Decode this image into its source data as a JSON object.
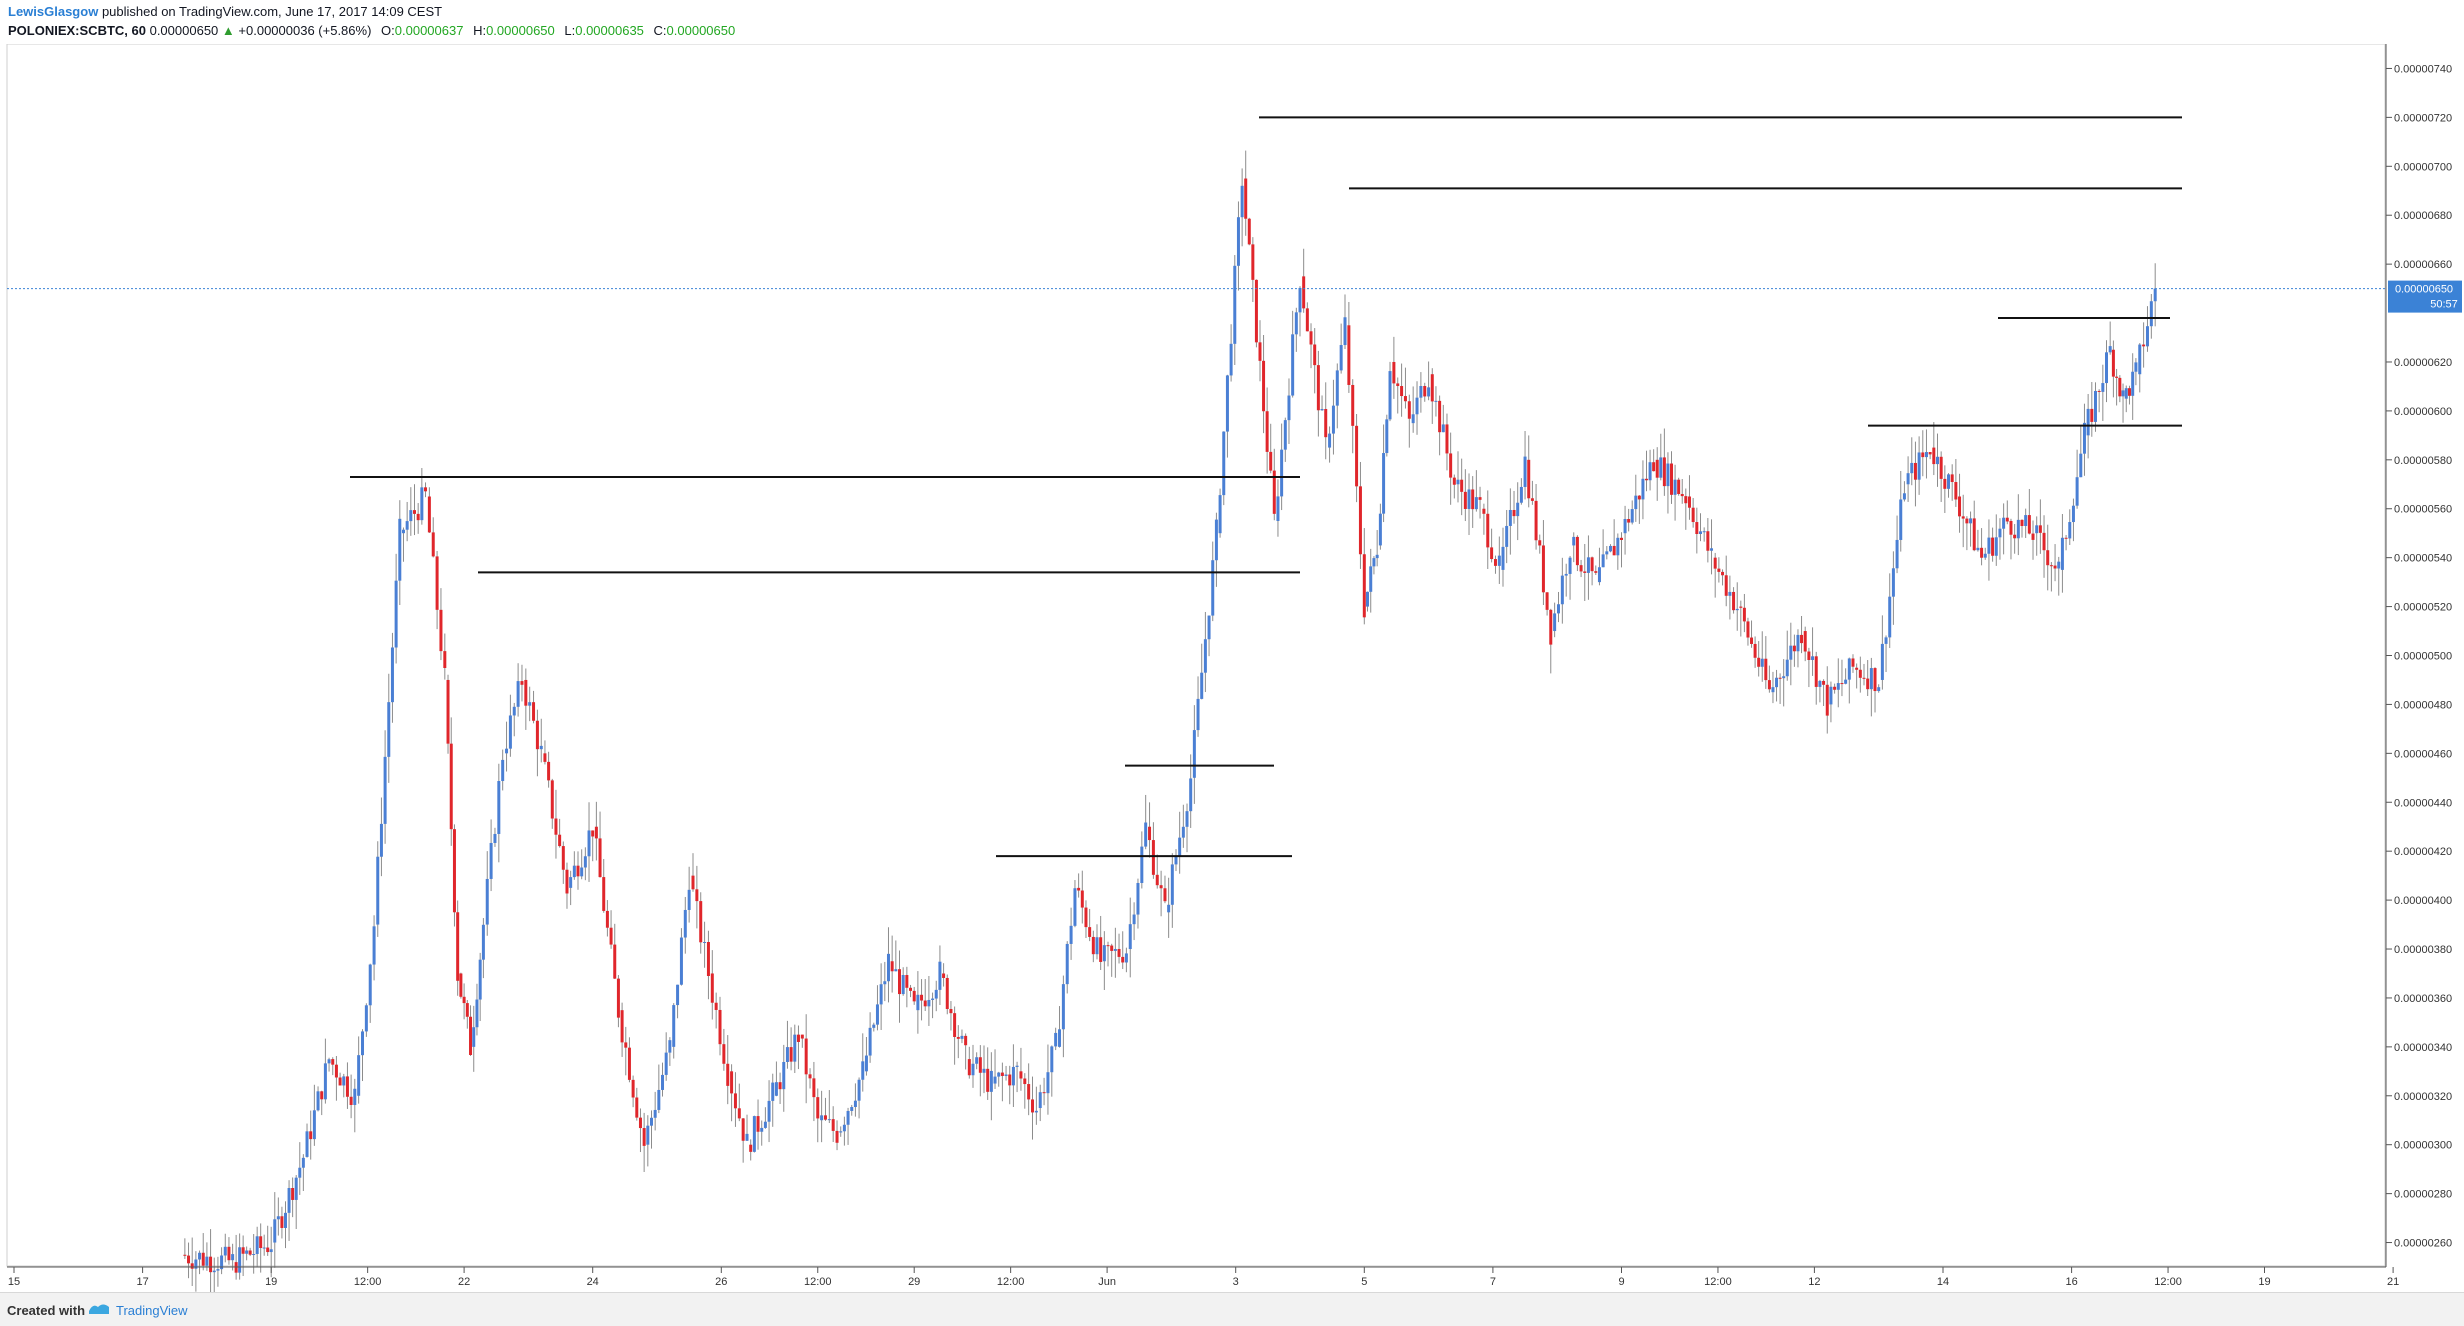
{
  "header": {
    "author": "LewisGlasgow",
    "published": "published on TradingView.com, June 17, 2017 14:09 CEST",
    "symbol": "POLONIEX:SCBTC, 60",
    "last": "0.00000650",
    "change": "+0.00000036 (+5.86%)",
    "o_label": "O:",
    "o_value": "0.00000637",
    "h_label": "H:",
    "h_value": "0.00000650",
    "l_label": "L:",
    "l_value": "0.00000635",
    "c_label": "C:",
    "c_value": "0.00000650"
  },
  "footer": {
    "created_with": "Created with",
    "brand": "TradingView"
  },
  "chart_data": {
    "type": "line",
    "title": "",
    "xlabel": "",
    "ylabel": "",
    "ylim": [
      2.5e-06,
      7.5e-06
    ],
    "grid": false,
    "y_ticks": [
      "0.00000740",
      "0.00000720",
      "0.00000700",
      "0.00000680",
      "0.00000660",
      "0.00000620",
      "0.00000600",
      "0.00000580",
      "0.00000560",
      "0.00000540",
      "0.00000520",
      "0.00000500",
      "0.00000480",
      "0.00000460",
      "0.00000440",
      "0.00000420",
      "0.00000400",
      "0.00000380",
      "0.00000360",
      "0.00000340",
      "0.00000320",
      "0.00000300",
      "0.00000280",
      "0.00000260"
    ],
    "x_ticks": [
      "15",
      "17",
      "19",
      "12:00",
      "22",
      "24",
      "26",
      "12:00",
      "29",
      "12:00",
      "Jun",
      "3",
      "5",
      "7",
      "9",
      "12:00",
      "12",
      "14",
      "16",
      "12:00",
      "19",
      "21"
    ],
    "last_price_label": "0.00000650",
    "countdown_label": "50:57",
    "colors": {
      "up": "#4a7fd4",
      "down": "#e0262b",
      "wick": "#8c8c8c",
      "level": "#111111",
      "price_line": "#3b82d6"
    },
    "series": [
      {
        "x": [
          17.6,
          18.4,
          19.0,
          19.5,
          19.9,
          20.3,
          20.6,
          21.0,
          21.4,
          21.7,
          21.9,
          22.1,
          22.3,
          22.6,
          22.9,
          23.2,
          23.6,
          24.0,
          24.4,
          24.8,
          25.2,
          25.5,
          25.8,
          26.1,
          26.4,
          26.8,
          27.2,
          27.5,
          27.8,
          28.2,
          28.6,
          29.0,
          29.4,
          29.8,
          30.2,
          30.6,
          30.9,
          31.2,
          31.5,
          31.9,
          32.3,
          32.6,
          32.9,
          33.3,
          33.7,
          34.1,
          34.6,
          35.0,
          35.4,
          35.7,
          36.0,
          36.2,
          36.4,
          36.7,
          37.0,
          37.4,
          37.8,
          38.1,
          38.5,
          38.9,
          39.2,
          39.6,
          40.0,
          40.5,
          41.0,
          41.4,
          41.8,
          42.3,
          42.8,
          43.2,
          43.6,
          44.0,
          44.4,
          44.8,
          45.2,
          45.6,
          46.0,
          46.4,
          46.8,
          47.2,
          47.6,
          47.8,
          48.0,
          48.3
        ],
        "y": [
          2.55,
          2.52,
          2.6,
          2.95,
          3.35,
          3.2,
          3.9,
          5.5,
          5.65,
          4.9,
          3.7,
          3.4,
          3.9,
          4.6,
          4.9,
          4.6,
          4.05,
          4.3,
          3.55,
          3.0,
          3.4,
          4.1,
          3.7,
          3.3,
          3.0,
          3.2,
          3.45,
          3.1,
          3.05,
          3.3,
          3.75,
          3.55,
          3.7,
          3.35,
          3.25,
          3.3,
          3.15,
          3.4,
          4.05,
          3.75,
          3.8,
          4.3,
          3.95,
          4.5,
          5.5,
          6.95,
          5.55,
          6.55,
          5.85,
          6.35,
          5.2,
          5.45,
          6.2,
          5.95,
          6.15,
          5.7,
          5.6,
          5.35,
          5.8,
          5.1,
          5.45,
          5.3,
          5.5,
          5.8,
          5.65,
          5.4,
          5.2,
          4.85,
          5.1,
          4.8,
          4.95,
          4.9,
          5.7,
          5.85,
          5.65,
          5.4,
          5.55,
          5.5,
          5.35,
          5.9,
          6.25,
          6.05,
          6.15,
          6.5
        ]
      }
    ],
    "levels": [
      7.2e-06,
      6.91e-06,
      6.38e-06,
      5.94e-06,
      5.73e-06,
      5.34e-06,
      4.55e-06,
      4.18e-06
    ]
  }
}
